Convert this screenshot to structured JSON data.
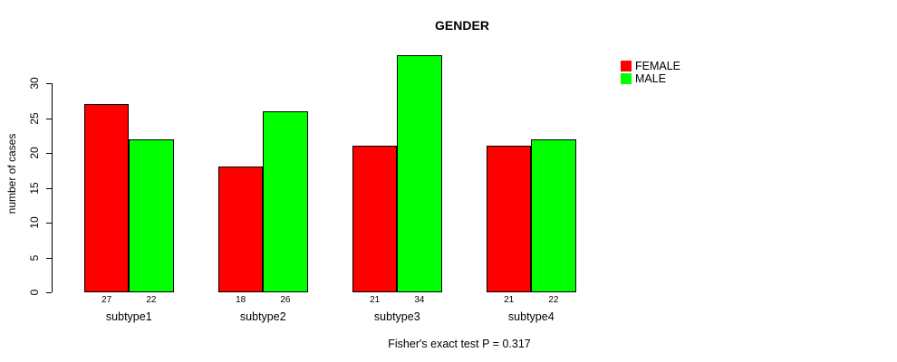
{
  "chart_data": {
    "type": "bar",
    "title": "GENDER",
    "ylabel": "number of cases",
    "footnote": "Fisher's exact test P = 0.317",
    "categories": [
      "subtype1",
      "subtype2",
      "subtype3",
      "subtype4"
    ],
    "series": [
      {
        "name": "FEMALE",
        "color": "#ff0000",
        "values": [
          27,
          18,
          21,
          21
        ]
      },
      {
        "name": "MALE",
        "color": "#00ff00",
        "values": [
          22,
          26,
          34,
          22
        ]
      }
    ],
    "yticks": [
      0,
      5,
      10,
      15,
      20,
      25,
      30
    ],
    "ylim": [
      0,
      34
    ],
    "bar_value_labels_shown": true,
    "grid": "off",
    "legend_position": "right",
    "axis_color": "#000000",
    "background_color": "#ffffff"
  }
}
